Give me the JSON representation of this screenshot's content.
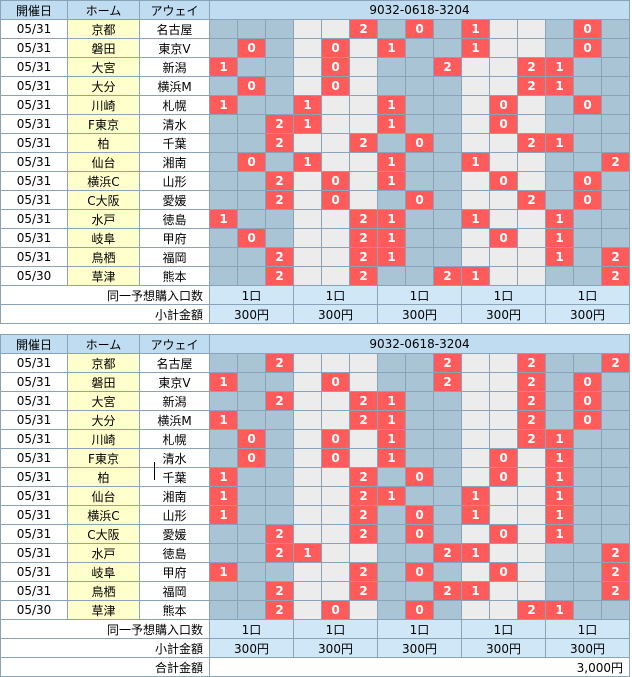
{
  "headers": {
    "date": "開催日",
    "home": "ホーム",
    "away": "アウェイ",
    "code": "9032-0618-3204"
  },
  "blocks": [
    {
      "rows": [
        {
          "date": "05/31",
          "home": "京都",
          "away": "名古屋"
        },
        {
          "date": "05/31",
          "home": "磐田",
          "away": "東京V"
        },
        {
          "date": "05/31",
          "home": "大宮",
          "away": "新潟"
        },
        {
          "date": "05/31",
          "home": "大分",
          "away": "横浜M"
        },
        {
          "date": "05/31",
          "home": "川崎",
          "away": "札幌"
        },
        {
          "date": "05/31",
          "home": "F東京",
          "away": "清水"
        },
        {
          "date": "05/31",
          "home": "柏",
          "away": "千葉"
        },
        {
          "date": "05/31",
          "home": "仙台",
          "away": "湘南"
        },
        {
          "date": "05/31",
          "home": "横浜C",
          "away": "山形"
        },
        {
          "date": "05/31",
          "home": "C大阪",
          "away": "愛媛"
        },
        {
          "date": "05/31",
          "home": "水戸",
          "away": "徳島"
        },
        {
          "date": "05/31",
          "home": "岐阜",
          "away": "甲府"
        },
        {
          "date": "05/31",
          "home": "鳥栖",
          "away": "福岡"
        },
        {
          "date": "05/30",
          "home": "草津",
          "away": "熊本"
        }
      ],
      "grid": [
        [
          "",
          "",
          "",
          "",
          "",
          "2",
          "",
          "0",
          "",
          "1",
          "",
          "",
          "",
          "0",
          ""
        ],
        [
          "",
          "0",
          "",
          "",
          "0",
          "",
          "1",
          "",
          "",
          "1",
          "",
          "",
          "",
          "0",
          ""
        ],
        [
          "1",
          "",
          "",
          "",
          "0",
          "",
          "",
          "",
          "2",
          "",
          "",
          "2",
          "1",
          "",
          ""
        ],
        [
          "",
          "0",
          "",
          "",
          "0",
          "",
          "",
          "",
          "",
          "",
          "",
          "2",
          "1",
          "",
          ""
        ],
        [
          "1",
          "",
          "",
          "1",
          "",
          "",
          "1",
          "",
          "",
          "",
          "0",
          "",
          "",
          "0",
          ""
        ],
        [
          "",
          "",
          "2",
          "1",
          "",
          "",
          "1",
          "",
          "",
          "",
          "0",
          "",
          "",
          "",
          ""
        ],
        [
          "",
          "",
          "2",
          "",
          "",
          "2",
          "",
          "0",
          "",
          "",
          "",
          "2",
          "1",
          "",
          ""
        ],
        [
          "",
          "0",
          "",
          "1",
          "",
          "",
          "1",
          "",
          "",
          "1",
          "",
          "",
          "",
          "",
          "2"
        ],
        [
          "",
          "",
          "2",
          "",
          "0",
          "",
          "1",
          "",
          "",
          "",
          "0",
          "",
          "",
          "0",
          ""
        ],
        [
          "",
          "",
          "2",
          "",
          "0",
          "",
          "",
          "0",
          "",
          "",
          "",
          "2",
          "",
          "0",
          ""
        ],
        [
          "1",
          "",
          "",
          "",
          "",
          "2",
          "1",
          "",
          "",
          "1",
          "",
          "",
          "1",
          "",
          ""
        ],
        [
          "",
          "0",
          "",
          "",
          "",
          "2",
          "1",
          "",
          "",
          "",
          "0",
          "",
          "1",
          "",
          ""
        ],
        [
          "",
          "",
          "2",
          "",
          "",
          "2",
          "1",
          "",
          "",
          "",
          "",
          "",
          "1",
          "",
          "2"
        ],
        [
          "",
          "",
          "2",
          "",
          "",
          "2",
          "",
          "",
          "2",
          "1",
          "",
          "",
          "",
          "",
          "2"
        ]
      ],
      "summary": {
        "count_label": "同一予想購入口数",
        "counts": [
          "1口",
          "1口",
          "1口",
          "1口",
          "1口"
        ],
        "subtotal_label": "小計金額",
        "subtotals": [
          "300円",
          "300円",
          "300円",
          "300円",
          "300円"
        ]
      }
    },
    {
      "rows": [
        {
          "date": "05/31",
          "home": "京都",
          "away": "名古屋"
        },
        {
          "date": "05/31",
          "home": "磐田",
          "away": "東京V"
        },
        {
          "date": "05/31",
          "home": "大宮",
          "away": "新潟"
        },
        {
          "date": "05/31",
          "home": "大分",
          "away": "横浜M"
        },
        {
          "date": "05/31",
          "home": "川崎",
          "away": "札幌"
        },
        {
          "date": "05/31",
          "home": "F東京",
          "away": "清水"
        },
        {
          "date": "05/31",
          "home": "柏",
          "away": "千葉"
        },
        {
          "date": "05/31",
          "home": "仙台",
          "away": "湘南"
        },
        {
          "date": "05/31",
          "home": "横浜C",
          "away": "山形"
        },
        {
          "date": "05/31",
          "home": "C大阪",
          "away": "愛媛"
        },
        {
          "date": "05/31",
          "home": "水戸",
          "away": "徳島"
        },
        {
          "date": "05/31",
          "home": "岐阜",
          "away": "甲府"
        },
        {
          "date": "05/31",
          "home": "鳥栖",
          "away": "福岡"
        },
        {
          "date": "05/30",
          "home": "草津",
          "away": "熊本"
        }
      ],
      "grid": [
        [
          "",
          "",
          "2",
          "",
          "",
          "",
          "",
          "",
          "2",
          "",
          "",
          "2",
          "",
          "",
          "2"
        ],
        [
          "1",
          "",
          "",
          "",
          "0",
          "",
          "",
          "",
          "2",
          "",
          "",
          "2",
          "",
          "0",
          ""
        ],
        [
          "",
          "",
          "2",
          "",
          "",
          "2",
          "1",
          "",
          "",
          "",
          "",
          "2",
          "",
          "0",
          ""
        ],
        [
          "1",
          "",
          "",
          "",
          "",
          "2",
          "1",
          "",
          "",
          "",
          "",
          "2",
          "",
          "0",
          ""
        ],
        [
          "",
          "0",
          "",
          "",
          "0",
          "",
          "1",
          "",
          "",
          "",
          "",
          "2",
          "1",
          "",
          ""
        ],
        [
          "",
          "0",
          "",
          "",
          "0",
          "",
          "1",
          "",
          "",
          "",
          "0",
          "",
          "1",
          "",
          ""
        ],
        [
          "1",
          "",
          "",
          "",
          "",
          "2",
          "",
          "0",
          "",
          "",
          "0",
          "",
          "1",
          "",
          ""
        ],
        [
          "1",
          "",
          "",
          "",
          "",
          "2",
          "1",
          "",
          "",
          "1",
          "",
          "",
          "1",
          "",
          ""
        ],
        [
          "1",
          "",
          "",
          "",
          "",
          "2",
          "",
          "0",
          "",
          "1",
          "",
          "",
          "1",
          "",
          ""
        ],
        [
          "",
          "",
          "2",
          "",
          "",
          "2",
          "",
          "0",
          "",
          "",
          "0",
          "",
          "1",
          "",
          ""
        ],
        [
          "",
          "",
          "2",
          "1",
          "",
          "",
          "",
          "",
          "2",
          "1",
          "",
          "",
          "",
          "",
          "2"
        ],
        [
          "1",
          "",
          "",
          "",
          "",
          "2",
          "",
          "0",
          "",
          "",
          "0",
          "",
          "",
          "",
          "2"
        ],
        [
          "",
          "",
          "2",
          "",
          "",
          "2",
          "",
          "",
          "2",
          "1",
          "",
          "",
          "",
          "",
          "2"
        ],
        [
          "",
          "",
          "2",
          "",
          "0",
          "",
          "",
          "0",
          "",
          "",
          "",
          "2",
          "1",
          "",
          ""
        ]
      ],
      "summary": {
        "count_label": "同一予想購入口数",
        "counts": [
          "1口",
          "1口",
          "1口",
          "1口",
          "1口"
        ],
        "subtotal_label": "小計金額",
        "subtotals": [
          "300円",
          "300円",
          "300円",
          "300円",
          "300円"
        ],
        "total_label": "合計金額",
        "total": "3,000円"
      }
    }
  ]
}
